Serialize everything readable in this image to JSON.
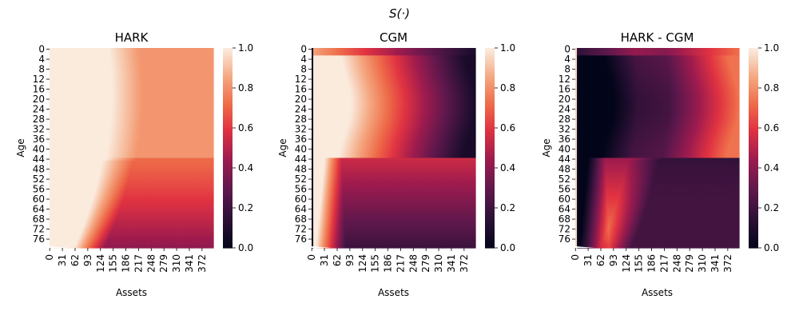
{
  "suptitle": "S(·)",
  "chart_data": [
    {
      "type": "heatmap",
      "title": "HARK",
      "xlabel": "Assets",
      "ylabel": "Age",
      "x_ticks": [
        "0",
        "31",
        "62",
        "93",
        "124",
        "155",
        "186",
        "217",
        "248",
        "279",
        "310",
        "341",
        "372"
      ],
      "y_ticks": [
        "0",
        "4",
        "8",
        "12",
        "16",
        "20",
        "24",
        "28",
        "32",
        "36",
        "40",
        "44",
        "48",
        "52",
        "56",
        "60",
        "64",
        "68",
        "72",
        "76"
      ],
      "colorbar": {
        "ticks": [
          "0.0",
          "0.2",
          "0.4",
          "0.6",
          "0.8",
          "1.0"
        ],
        "range": [
          0,
          1
        ]
      },
      "colormap": "rocket"
    },
    {
      "type": "heatmap",
      "title": "CGM",
      "xlabel": "Assets",
      "ylabel": "Age",
      "x_ticks": [
        "0",
        "31",
        "62",
        "93",
        "124",
        "155",
        "186",
        "217",
        "248",
        "279",
        "310",
        "341",
        "372"
      ],
      "y_ticks": [
        "0",
        "4",
        "8",
        "12",
        "16",
        "20",
        "24",
        "28",
        "32",
        "36",
        "40",
        "44",
        "48",
        "52",
        "56",
        "60",
        "64",
        "68",
        "72",
        "76"
      ],
      "colorbar": {
        "ticks": [
          "0.0",
          "0.2",
          "0.4",
          "0.6",
          "0.8",
          "1.0"
        ],
        "range": [
          0,
          1
        ]
      },
      "colormap": "rocket"
    },
    {
      "type": "heatmap",
      "title": "HARK - CGM",
      "xlabel": "Assets",
      "ylabel": "Age",
      "x_ticks": [
        "0",
        "31",
        "62",
        "93",
        "124",
        "155",
        "186",
        "217",
        "248",
        "279",
        "310",
        "341",
        "372"
      ],
      "y_ticks": [
        "0",
        "4",
        "8",
        "12",
        "16",
        "20",
        "24",
        "28",
        "32",
        "36",
        "40",
        "44",
        "48",
        "52",
        "56",
        "60",
        "64",
        "68",
        "72",
        "76"
      ],
      "colorbar": {
        "ticks": [
          "0.0",
          "0.2",
          "0.4",
          "0.6",
          "0.8",
          "1.0"
        ],
        "range": [
          0,
          1
        ]
      },
      "colormap": "rocket"
    }
  ]
}
